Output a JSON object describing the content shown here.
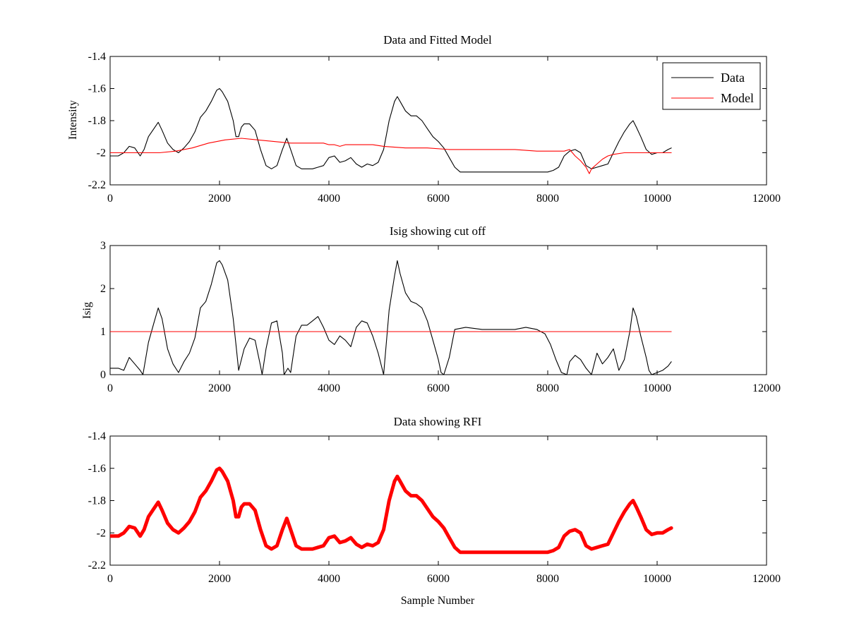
{
  "chart_data": [
    {
      "type": "line",
      "title": "Data and Fitted Model",
      "xlabel": "",
      "ylabel": "Intensity",
      "xlim": [
        0,
        12000
      ],
      "ylim": [
        -2.2,
        -1.4
      ],
      "xticks": [
        0,
        2000,
        4000,
        6000,
        8000,
        10000,
        12000
      ],
      "yticks": [
        -2.2,
        -2.0,
        -1.8,
        -1.6,
        -1.4
      ],
      "xtick_labels": [
        "0",
        "2000",
        "4000",
        "6000",
        "8000",
        "10000",
        "12000"
      ],
      "ytick_labels": [
        "-2.2",
        "-2",
        "-1.8",
        "-1.6",
        "-1.4"
      ],
      "grid": false,
      "legend": "top-right",
      "series": [
        {
          "name": "Data",
          "color": "#000000",
          "x": [
            0,
            150,
            250,
            350,
            450,
            550,
            620,
            700,
            800,
            880,
            950,
            1050,
            1150,
            1250,
            1350,
            1450,
            1550,
            1650,
            1750,
            1850,
            1950,
            2000,
            2050,
            2150,
            2250,
            2300,
            2350,
            2400,
            2450,
            2550,
            2650,
            2750,
            2850,
            2950,
            3050,
            3150,
            3230,
            3300,
            3400,
            3500,
            3600,
            3700,
            3800,
            3900,
            4000,
            4100,
            4200,
            4300,
            4400,
            4500,
            4600,
            4700,
            4800,
            4900,
            5000,
            5100,
            5200,
            5250,
            5300,
            5400,
            5500,
            5600,
            5700,
            5800,
            5900,
            6000,
            6100,
            6200,
            6300,
            6400,
            6600,
            6800,
            7000,
            7200,
            7400,
            7600,
            7800,
            8000,
            8100,
            8200,
            8300,
            8400,
            8500,
            8600,
            8700,
            8800,
            8900,
            9000,
            9100,
            9200,
            9300,
            9400,
            9500,
            9560,
            9620,
            9700,
            9800,
            9900,
            10000,
            10100,
            10200,
            10260
          ],
          "y": [
            -2.02,
            -2.02,
            -2.0,
            -1.96,
            -1.97,
            -2.02,
            -1.98,
            -1.9,
            -1.85,
            -1.81,
            -1.86,
            -1.94,
            -1.98,
            -2.0,
            -1.97,
            -1.93,
            -1.87,
            -1.78,
            -1.74,
            -1.68,
            -1.61,
            -1.6,
            -1.62,
            -1.68,
            -1.8,
            -1.9,
            -1.9,
            -1.84,
            -1.82,
            -1.82,
            -1.86,
            -1.98,
            -2.08,
            -2.1,
            -2.08,
            -1.98,
            -1.91,
            -1.98,
            -2.08,
            -2.1,
            -2.1,
            -2.1,
            -2.09,
            -2.08,
            -2.03,
            -2.02,
            -2.06,
            -2.05,
            -2.03,
            -2.07,
            -2.09,
            -2.07,
            -2.08,
            -2.06,
            -1.98,
            -1.8,
            -1.68,
            -1.65,
            -1.68,
            -1.74,
            -1.77,
            -1.77,
            -1.8,
            -1.85,
            -1.9,
            -1.93,
            -1.97,
            -2.03,
            -2.09,
            -2.12,
            -2.12,
            -2.12,
            -2.12,
            -2.12,
            -2.12,
            -2.12,
            -2.12,
            -2.12,
            -2.11,
            -2.09,
            -2.02,
            -1.99,
            -1.98,
            -2.0,
            -2.08,
            -2.1,
            -2.09,
            -2.08,
            -2.07,
            -2.0,
            -1.93,
            -1.87,
            -1.82,
            -1.8,
            -1.84,
            -1.9,
            -1.98,
            -2.01,
            -2.0,
            -2.0,
            -1.98,
            -1.97
          ]
        },
        {
          "name": "Model",
          "color": "#ff0000",
          "x": [
            0,
            300,
            600,
            900,
            1200,
            1500,
            1800,
            2100,
            2400,
            2700,
            3000,
            3300,
            3600,
            3900,
            4000,
            4100,
            4200,
            4300,
            4400,
            4500,
            4600,
            4800,
            5000,
            5400,
            5800,
            6200,
            6600,
            7000,
            7400,
            7800,
            8100,
            8300,
            8400,
            8500,
            8600,
            8700,
            8760,
            8800,
            8900,
            9000,
            9100,
            9200,
            9400,
            9600,
            9800,
            10000,
            10260
          ],
          "y": [
            -2.0,
            -2.0,
            -2.0,
            -2.0,
            -1.99,
            -1.97,
            -1.94,
            -1.92,
            -1.91,
            -1.92,
            -1.93,
            -1.94,
            -1.94,
            -1.94,
            -1.95,
            -1.95,
            -1.96,
            -1.95,
            -1.95,
            -1.95,
            -1.95,
            -1.95,
            -1.96,
            -1.97,
            -1.97,
            -1.98,
            -1.98,
            -1.98,
            -1.98,
            -1.99,
            -1.99,
            -1.99,
            -1.98,
            -2.02,
            -2.05,
            -2.09,
            -2.13,
            -2.1,
            -2.07,
            -2.04,
            -2.02,
            -2.01,
            -2.0,
            -2.0,
            -2.0,
            -2.0,
            -2.0
          ]
        }
      ]
    },
    {
      "type": "line",
      "title": "Isig showing cut off",
      "xlabel": "",
      "ylabel": "Isig",
      "xlim": [
        0,
        12000
      ],
      "ylim": [
        0,
        3
      ],
      "xticks": [
        0,
        2000,
        4000,
        6000,
        8000,
        10000,
        12000
      ],
      "yticks": [
        0,
        1,
        2,
        3
      ],
      "xtick_labels": [
        "0",
        "2000",
        "4000",
        "6000",
        "8000",
        "10000",
        "12000"
      ],
      "ytick_labels": [
        "0",
        "1",
        "2",
        "3"
      ],
      "grid": false,
      "series": [
        {
          "color": "#000000",
          "x": [
            0,
            150,
            250,
            350,
            450,
            550,
            600,
            700,
            800,
            880,
            950,
            1050,
            1150,
            1250,
            1350,
            1450,
            1550,
            1650,
            1750,
            1850,
            1950,
            2000,
            2050,
            2150,
            2250,
            2300,
            2350,
            2450,
            2550,
            2650,
            2750,
            2780,
            2850,
            2950,
            3050,
            3150,
            3180,
            3250,
            3300,
            3400,
            3500,
            3600,
            3700,
            3800,
            3900,
            4000,
            4100,
            4200,
            4300,
            4400,
            4500,
            4600,
            4700,
            4800,
            4900,
            5000,
            5100,
            5200,
            5250,
            5300,
            5400,
            5500,
            5600,
            5700,
            5800,
            5900,
            6000,
            6050,
            6100,
            6200,
            6300,
            6500,
            6800,
            7000,
            7200,
            7400,
            7600,
            7800,
            7950,
            8050,
            8150,
            8250,
            8350,
            8400,
            8500,
            8600,
            8700,
            8800,
            8900,
            9000,
            9100,
            9200,
            9300,
            9400,
            9500,
            9560,
            9620,
            9700,
            9800,
            9850,
            9900,
            10000,
            10100,
            10200,
            10260
          ],
          "y": [
            0.15,
            0.15,
            0.1,
            0.4,
            0.25,
            0.1,
            0.0,
            0.75,
            1.2,
            1.55,
            1.3,
            0.6,
            0.25,
            0.05,
            0.3,
            0.5,
            0.85,
            1.55,
            1.7,
            2.1,
            2.6,
            2.65,
            2.55,
            2.2,
            1.3,
            0.7,
            0.1,
            0.6,
            0.85,
            0.8,
            0.2,
            0.0,
            0.6,
            1.2,
            1.25,
            0.5,
            0.0,
            0.15,
            0.05,
            0.9,
            1.15,
            1.15,
            1.25,
            1.35,
            1.1,
            0.8,
            0.7,
            0.9,
            0.8,
            0.65,
            1.1,
            1.25,
            1.2,
            0.9,
            0.5,
            0.0,
            1.5,
            2.3,
            2.65,
            2.35,
            1.9,
            1.7,
            1.65,
            1.55,
            1.25,
            0.8,
            0.35,
            0.05,
            0.0,
            0.4,
            1.05,
            1.1,
            1.05,
            1.05,
            1.05,
            1.05,
            1.1,
            1.05,
            0.95,
            0.7,
            0.35,
            0.05,
            0.0,
            0.3,
            0.45,
            0.35,
            0.15,
            0.0,
            0.5,
            0.25,
            0.4,
            0.6,
            0.1,
            0.35,
            1.0,
            1.55,
            1.35,
            0.9,
            0.4,
            0.1,
            0.0,
            0.05,
            0.1,
            0.2,
            0.3
          ]
        },
        {
          "color": "#ff0000",
          "x": [
            0,
            10260
          ],
          "y": [
            1,
            1
          ]
        }
      ]
    },
    {
      "type": "line",
      "title": "Data showing RFI",
      "xlabel": "Sample Number",
      "ylabel": "",
      "xlim": [
        0,
        12000
      ],
      "ylim": [
        -2.2,
        -1.4
      ],
      "xticks": [
        0,
        2000,
        4000,
        6000,
        8000,
        10000,
        12000
      ],
      "yticks": [
        -2.2,
        -2.0,
        -1.8,
        -1.6,
        -1.4
      ],
      "xtick_labels": [
        "0",
        "2000",
        "4000",
        "6000",
        "8000",
        "10000",
        "12000"
      ],
      "ytick_labels": [
        "-2.2",
        "-2",
        "-1.8",
        "-1.6",
        "-1.4"
      ],
      "grid": false,
      "series": [
        {
          "color": "#ff0000",
          "x": [
            0,
            150,
            250,
            350,
            450,
            550,
            620,
            700,
            800,
            880,
            950,
            1050,
            1150,
            1250,
            1350,
            1450,
            1550,
            1650,
            1750,
            1850,
            1950,
            2000,
            2050,
            2150,
            2250,
            2300,
            2350,
            2400,
            2450,
            2550,
            2650,
            2750,
            2850,
            2950,
            3050,
            3150,
            3230,
            3300,
            3400,
            3500,
            3600,
            3700,
            3800,
            3900,
            4000,
            4100,
            4200,
            4300,
            4400,
            4500,
            4600,
            4700,
            4800,
            4900,
            5000,
            5100,
            5200,
            5250,
            5300,
            5400,
            5500,
            5600,
            5700,
            5800,
            5900,
            6000,
            6100,
            6200,
            6300,
            6400,
            6600,
            6800,
            7000,
            7200,
            7400,
            7600,
            7800,
            8000,
            8100,
            8200,
            8300,
            8400,
            8500,
            8600,
            8700,
            8800,
            8900,
            9000,
            9100,
            9200,
            9300,
            9400,
            9500,
            9560,
            9620,
            9700,
            9800,
            9900,
            10000,
            10100,
            10200,
            10260
          ],
          "y": [
            -2.02,
            -2.02,
            -2.0,
            -1.96,
            -1.97,
            -2.02,
            -1.98,
            -1.9,
            -1.85,
            -1.81,
            -1.86,
            -1.94,
            -1.98,
            -2.0,
            -1.97,
            -1.93,
            -1.87,
            -1.78,
            -1.74,
            -1.68,
            -1.61,
            -1.6,
            -1.62,
            -1.68,
            -1.8,
            -1.9,
            -1.9,
            -1.84,
            -1.82,
            -1.82,
            -1.86,
            -1.98,
            -2.08,
            -2.1,
            -2.08,
            -1.98,
            -1.91,
            -1.98,
            -2.08,
            -2.1,
            -2.1,
            -2.1,
            -2.09,
            -2.08,
            -2.03,
            -2.02,
            -2.06,
            -2.05,
            -2.03,
            -2.07,
            -2.09,
            -2.07,
            -2.08,
            -2.06,
            -1.98,
            -1.8,
            -1.68,
            -1.65,
            -1.68,
            -1.74,
            -1.77,
            -1.77,
            -1.8,
            -1.85,
            -1.9,
            -1.93,
            -1.97,
            -2.03,
            -2.09,
            -2.12,
            -2.12,
            -2.12,
            -2.12,
            -2.12,
            -2.12,
            -2.12,
            -2.12,
            -2.12,
            -2.11,
            -2.09,
            -2.02,
            -1.99,
            -1.98,
            -2.0,
            -2.08,
            -2.1,
            -2.09,
            -2.08,
            -2.07,
            -2.0,
            -1.93,
            -1.87,
            -1.82,
            -1.8,
            -1.84,
            -1.9,
            -1.98,
            -2.01,
            -2.0,
            -2.0,
            -1.98,
            -1.97
          ]
        }
      ]
    }
  ]
}
